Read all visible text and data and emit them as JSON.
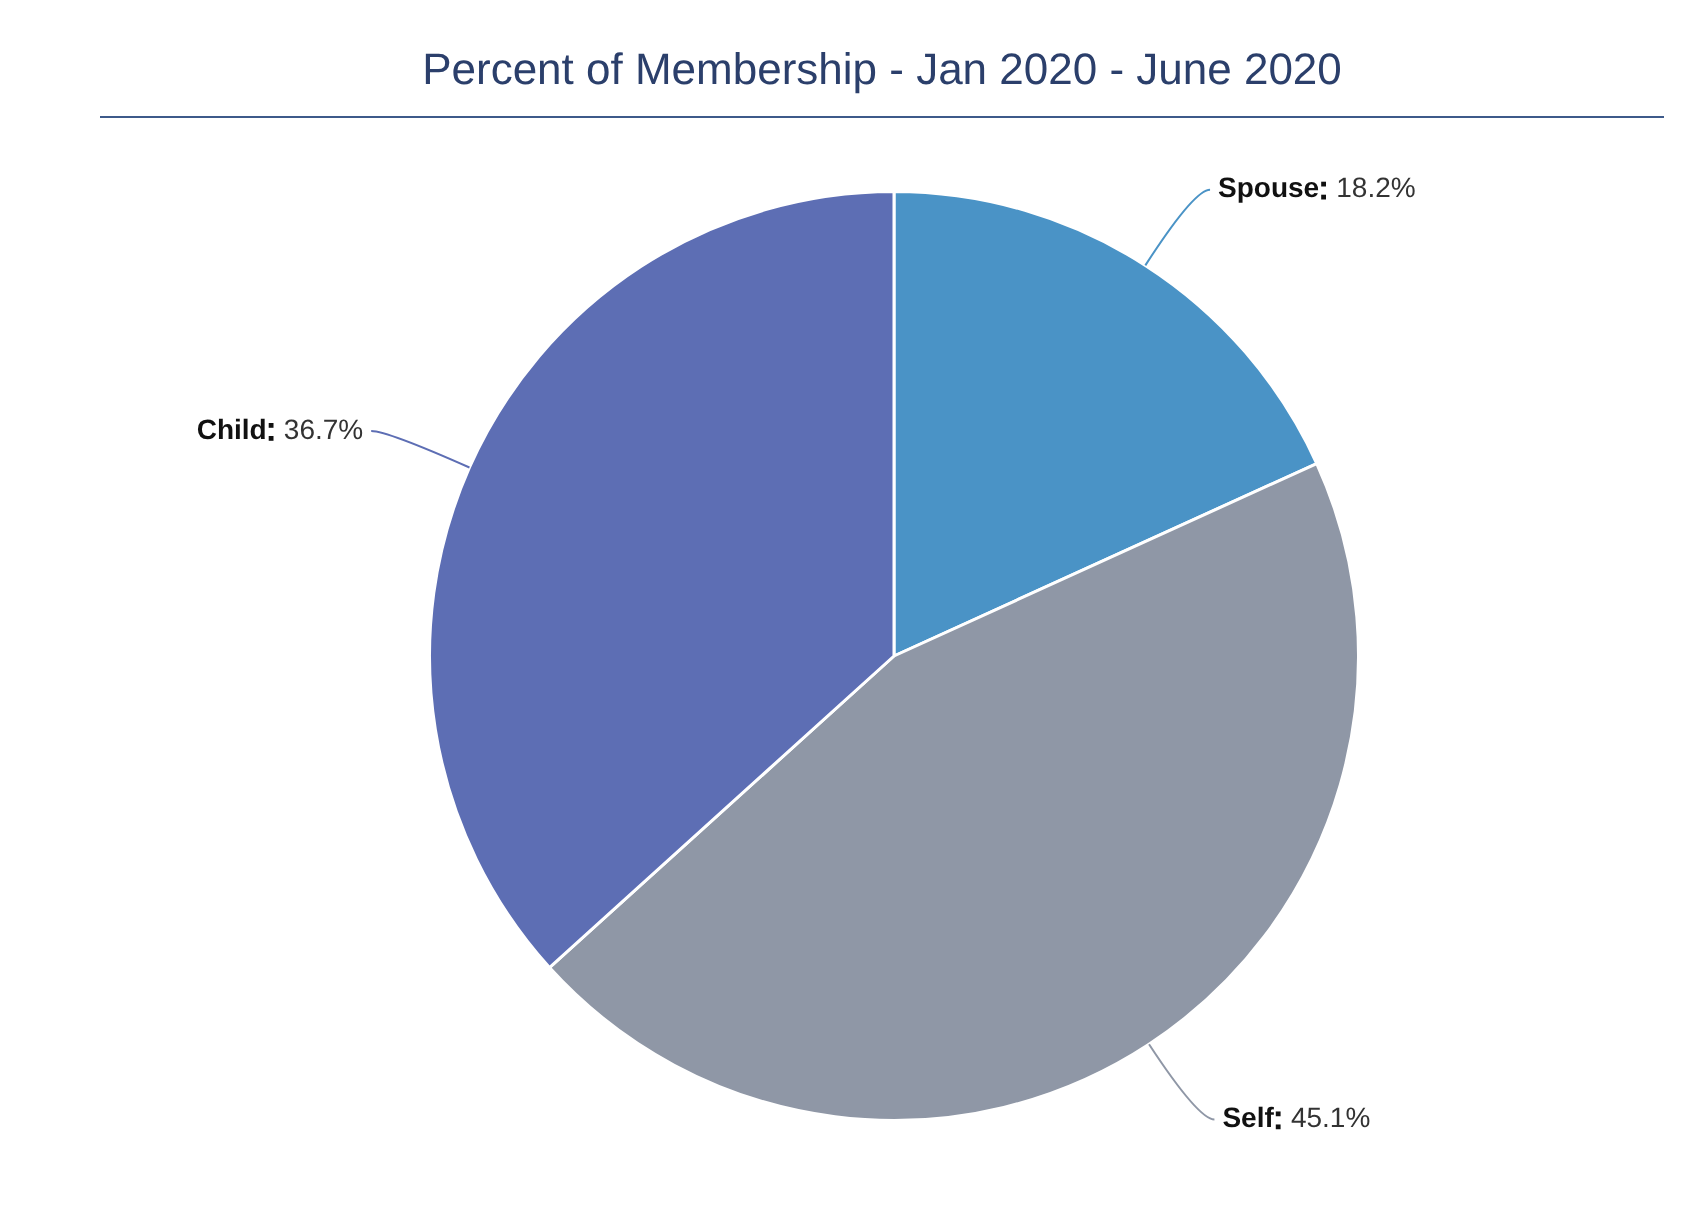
{
  "chart_data": {
    "type": "pie",
    "title": "Percent of Membership - Jan 2020 - June 2020",
    "categories": [
      "Spouse",
      "Self",
      "Child"
    ],
    "values": [
      18.2,
      45.1,
      36.7
    ],
    "value_labels": [
      "18.2%",
      "45.1%",
      "36.7%"
    ],
    "colors": [
      "#4a93c6",
      "#8f97a6",
      "#5d6eb4"
    ],
    "legend": false
  }
}
